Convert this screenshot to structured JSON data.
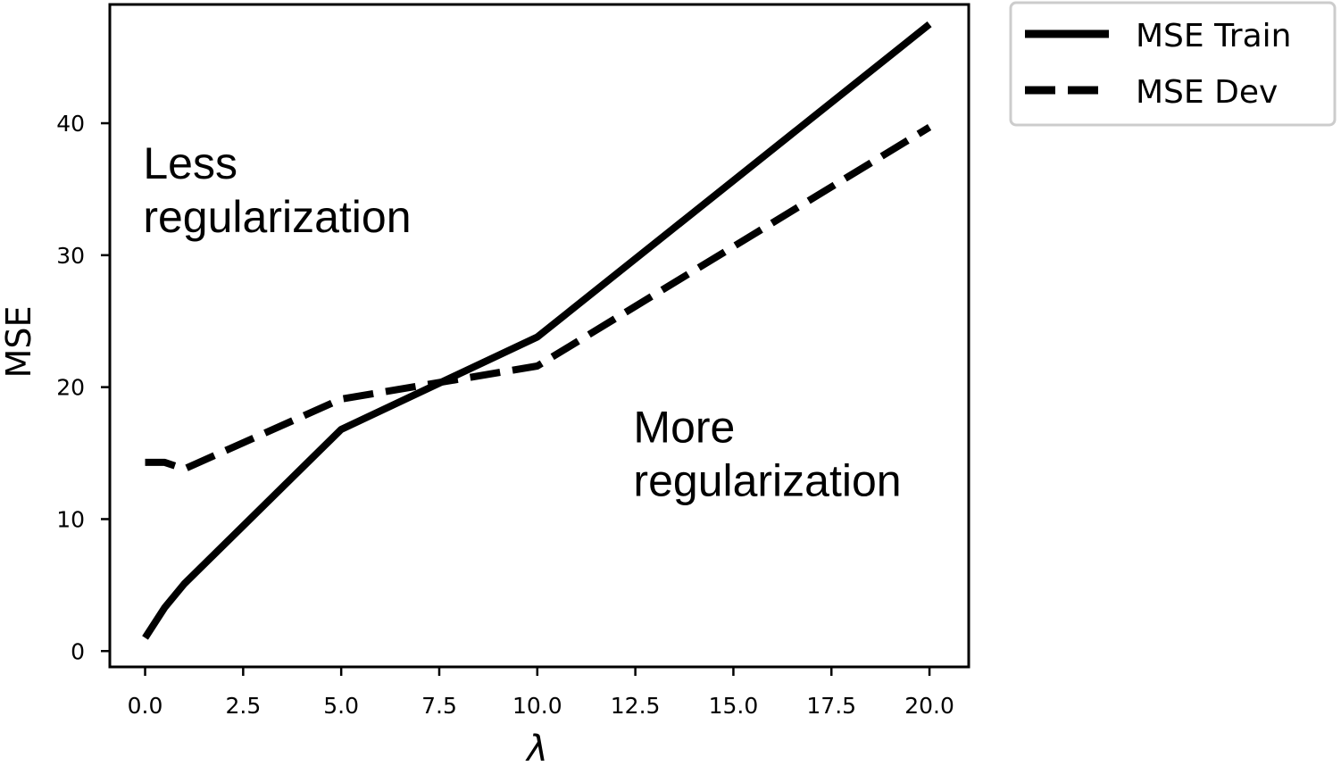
{
  "chart_data": {
    "type": "line",
    "xlabel": "λ",
    "ylabel": "MSE",
    "xlim": [
      -0.9,
      21.0
    ],
    "ylim": [
      -1.2,
      49.0
    ],
    "xticks": [
      0.0,
      2.5,
      5.0,
      7.5,
      10.0,
      12.5,
      15.0,
      17.5,
      20.0
    ],
    "xtick_labels": [
      "0.0",
      "2.5",
      "5.0",
      "7.5",
      "10.0",
      "12.5",
      "15.0",
      "17.5",
      "20.0"
    ],
    "yticks": [
      0,
      10,
      20,
      30,
      40
    ],
    "ytick_labels": [
      "0",
      "10",
      "20",
      "30",
      "40"
    ],
    "grid": false,
    "legend_position": "outside top-right",
    "series": [
      {
        "name": "MSE Train",
        "style": "solid",
        "x": [
          0.0,
          0.5,
          1.0,
          5.0,
          10.0,
          20.0
        ],
        "y": [
          1.0,
          3.3,
          5.1,
          16.8,
          23.8,
          47.5
        ]
      },
      {
        "name": "MSE Dev",
        "style": "dashed",
        "x": [
          0.0,
          0.5,
          1.0,
          5.0,
          10.0,
          20.0
        ],
        "y": [
          14.3,
          14.3,
          13.8,
          19.1,
          21.6,
          39.7
        ]
      }
    ],
    "annotations": [
      {
        "lines": [
          "Less",
          "regularization"
        ],
        "x": -0.05,
        "y": 35.8
      },
      {
        "lines": [
          "More",
          "regularization"
        ],
        "x": 12.45,
        "y": 15.8
      }
    ]
  },
  "colors": {
    "line": "#000000",
    "background": "#ffffff",
    "legend_border": "#cccccc"
  }
}
